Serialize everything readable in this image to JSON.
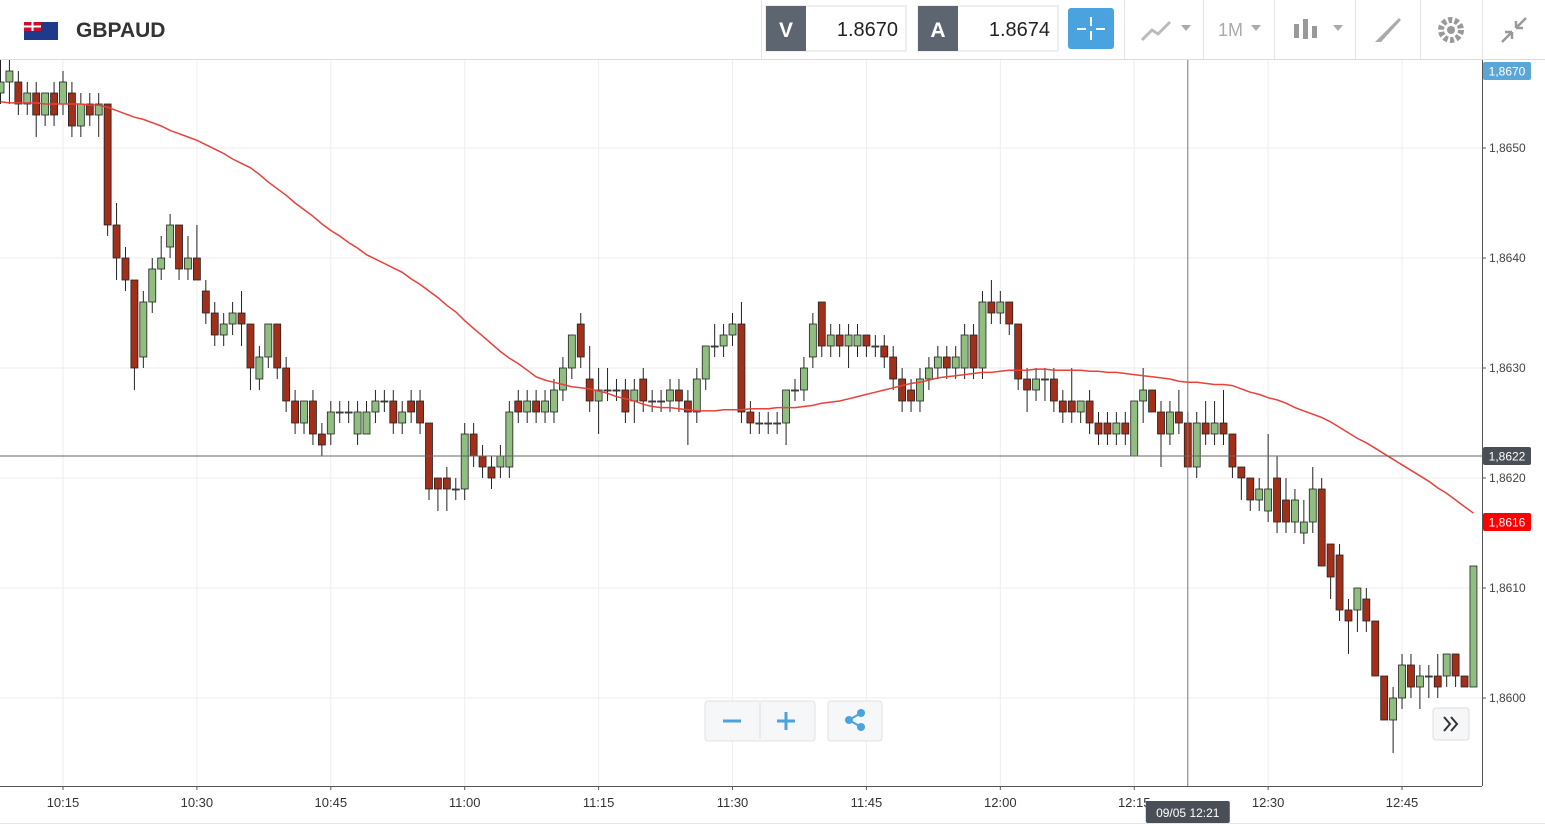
{
  "header": {
    "symbol": "GBPAUD",
    "bid_label": "V",
    "bid": "1.8670",
    "ask_label": "A",
    "ask": "1.8674",
    "timeframe": "1M"
  },
  "chart_data": {
    "type": "candlestick",
    "categories": [
      null,
      null,
      null,
      null,
      null,
      null,
      null,
      "10:15",
      null,
      null,
      null,
      null,
      null,
      null,
      null,
      null,
      null,
      null,
      null,
      null,
      null,
      null,
      "10:30",
      null,
      null,
      null,
      null,
      null,
      null,
      null,
      null,
      null,
      null,
      null,
      null,
      null,
      null,
      "10:45",
      null,
      null,
      null,
      null,
      null,
      null,
      null,
      null,
      null,
      null,
      null,
      null,
      null,
      null,
      "11:00",
      null,
      null,
      null,
      null,
      null,
      null,
      null,
      null,
      null,
      null,
      null,
      null,
      null,
      null,
      "11:15",
      null,
      null,
      null,
      null,
      null,
      null,
      null,
      null,
      null,
      null,
      null,
      null,
      null,
      null,
      "11:30",
      null,
      null,
      null,
      null,
      null,
      null,
      null,
      null,
      null,
      null,
      null,
      null,
      null,
      null,
      "11:45",
      null,
      null,
      null,
      null,
      null,
      null,
      null,
      null,
      null,
      null,
      null,
      null,
      null,
      null,
      "12:00",
      null,
      null,
      null,
      null,
      null,
      null,
      null,
      null,
      null,
      null,
      null,
      null,
      null,
      null,
      "12:15",
      null,
      null,
      null,
      null,
      null,
      null,
      null,
      null,
      null,
      null,
      null,
      null,
      null,
      null,
      "12:30",
      null,
      null,
      null,
      null,
      null,
      null,
      null,
      null,
      null,
      null,
      null,
      null,
      null,
      null,
      "12:45",
      null,
      null,
      null,
      null,
      null,
      null,
      null,
      null
    ],
    "ohlc": [
      [
        1.8655,
        1.8658,
        1.8654,
        1.8656
      ],
      [
        1.8656,
        1.8658,
        1.8654,
        1.8657
      ],
      [
        1.8656,
        1.8657,
        1.8653,
        1.8654
      ],
      [
        1.8654,
        1.8656,
        1.8653,
        1.8655
      ],
      [
        1.8655,
        1.8656,
        1.8651,
        1.8653
      ],
      [
        1.8653,
        1.8655,
        1.8652,
        1.8655
      ],
      [
        1.8655,
        1.8656,
        1.8652,
        1.8653
      ],
      [
        1.8654,
        1.8657,
        1.8653,
        1.8656
      ],
      [
        1.8655,
        1.8656,
        1.8651,
        1.8652
      ],
      [
        1.8652,
        1.8655,
        1.8651,
        1.8654
      ],
      [
        1.8654,
        1.8655,
        1.8652,
        1.8653
      ],
      [
        1.8653,
        1.8655,
        1.8651,
        1.8654
      ],
      [
        1.8654,
        1.8654,
        1.8642,
        1.8643
      ],
      [
        1.8643,
        1.8645,
        1.8638,
        1.864
      ],
      [
        1.864,
        1.8641,
        1.8637,
        1.8638
      ],
      [
        1.8638,
        1.8638,
        1.8628,
        1.863
      ],
      [
        1.8631,
        1.8637,
        1.863,
        1.8636
      ],
      [
        1.8636,
        1.864,
        1.8635,
        1.8639
      ],
      [
        1.8639,
        1.8642,
        1.8638,
        1.864
      ],
      [
        1.8641,
        1.8644,
        1.864,
        1.8643
      ],
      [
        1.8643,
        1.8643,
        1.8638,
        1.8639
      ],
      [
        1.8639,
        1.8642,
        1.8638,
        1.864
      ],
      [
        1.864,
        1.8643,
        1.8638,
        1.8638
      ],
      [
        1.8637,
        1.8638,
        1.8634,
        1.8635
      ],
      [
        1.8635,
        1.8636,
        1.8632,
        1.8633
      ],
      [
        1.8633,
        1.8635,
        1.8632,
        1.8634
      ],
      [
        1.8634,
        1.8636,
        1.8633,
        1.8635
      ],
      [
        1.8635,
        1.8637,
        1.8632,
        1.8634
      ],
      [
        1.8634,
        1.8634,
        1.8628,
        1.863
      ],
      [
        1.8629,
        1.8632,
        1.8628,
        1.8631
      ],
      [
        1.8631,
        1.8634,
        1.863,
        1.8634
      ],
      [
        1.8634,
        1.8634,
        1.8629,
        1.863
      ],
      [
        1.863,
        1.8631,
        1.8626,
        1.8627
      ],
      [
        1.8627,
        1.8628,
        1.8624,
        1.8625
      ],
      [
        1.8625,
        1.8627,
        1.8624,
        1.8627
      ],
      [
        1.8627,
        1.8628,
        1.8623,
        1.8624
      ],
      [
        1.8624,
        1.8625,
        1.8622,
        1.8623
      ],
      [
        1.8624,
        1.8627,
        1.8623,
        1.8626
      ],
      [
        1.8626,
        1.8627,
        1.8625,
        1.8626
      ],
      [
        1.8626,
        1.8627,
        1.8625,
        1.8626
      ],
      [
        1.8624,
        1.8627,
        1.8623,
        1.8626
      ],
      [
        1.8624,
        1.8627,
        1.8624,
        1.8626
      ],
      [
        1.8626,
        1.8628,
        1.8625,
        1.8627
      ],
      [
        1.8627,
        1.8628,
        1.8626,
        1.8627
      ],
      [
        1.8627,
        1.8628,
        1.8624,
        1.8625
      ],
      [
        1.8625,
        1.8627,
        1.8624,
        1.8626
      ],
      [
        1.8627,
        1.8628,
        1.8625,
        1.8626
      ],
      [
        1.8627,
        1.8628,
        1.8624,
        1.8625
      ],
      [
        1.8625,
        1.8625,
        1.8618,
        1.8619
      ],
      [
        1.862,
        1.862,
        1.8617,
        1.8619
      ],
      [
        1.862,
        1.8621,
        1.8617,
        1.8619
      ],
      [
        1.8619,
        1.862,
        1.8618,
        1.8619
      ],
      [
        1.8619,
        1.8625,
        1.8618,
        1.8624
      ],
      [
        1.8624,
        1.8625,
        1.8621,
        1.8622
      ],
      [
        1.8622,
        1.8623,
        1.862,
        1.8621
      ],
      [
        1.8621,
        1.8622,
        1.8619,
        1.862
      ],
      [
        1.8621,
        1.8623,
        1.862,
        1.8622
      ],
      [
        1.8621,
        1.8627,
        1.862,
        1.8626
      ],
      [
        1.8627,
        1.8628,
        1.8625,
        1.8626
      ],
      [
        1.8626,
        1.8628,
        1.8625,
        1.8627
      ],
      [
        1.8627,
        1.8628,
        1.8625,
        1.8626
      ],
      [
        1.8626,
        1.8628,
        1.8625,
        1.8627
      ],
      [
        1.8626,
        1.8629,
        1.8625,
        1.8628
      ],
      [
        1.8628,
        1.8631,
        1.8627,
        1.863
      ],
      [
        1.863,
        1.8633,
        1.8629,
        1.8633
      ],
      [
        1.8634,
        1.8635,
        1.863,
        1.8631
      ],
      [
        1.8629,
        1.8632,
        1.8626,
        1.8627
      ],
      [
        1.8627,
        1.863,
        1.8624,
        1.8628
      ],
      [
        1.8628,
        1.863,
        1.8627,
        1.8628
      ],
      [
        1.8628,
        1.8629,
        1.8627,
        1.8628
      ],
      [
        1.8628,
        1.8629,
        1.8625,
        1.8626
      ],
      [
        1.8627,
        1.8629,
        1.8625,
        1.8628
      ],
      [
        1.8629,
        1.863,
        1.8626,
        1.8627
      ],
      [
        1.8627,
        1.8628,
        1.8626,
        1.8627
      ],
      [
        1.8627,
        1.8628,
        1.8626,
        1.8627
      ],
      [
        1.8627,
        1.8629,
        1.8626,
        1.8628
      ],
      [
        1.8628,
        1.8629,
        1.8626,
        1.8627
      ],
      [
        1.8627,
        1.8628,
        1.8623,
        1.8626
      ],
      [
        1.8626,
        1.863,
        1.8625,
        1.8629
      ],
      [
        1.8629,
        1.8632,
        1.8628,
        1.8632
      ],
      [
        1.8632,
        1.8634,
        1.8631,
        1.8632
      ],
      [
        1.8632,
        1.8634,
        1.8631,
        1.8633
      ],
      [
        1.8633,
        1.8635,
        1.8632,
        1.8634
      ],
      [
        1.8634,
        1.8636,
        1.8625,
        1.8626
      ],
      [
        1.8626,
        1.8627,
        1.8624,
        1.8625
      ],
      [
        1.8625,
        1.8626,
        1.8624,
        1.8625
      ],
      [
        1.8625,
        1.8626,
        1.8624,
        1.8625
      ],
      [
        1.8625,
        1.8626,
        1.8624,
        1.8625
      ],
      [
        1.8625,
        1.8628,
        1.8623,
        1.8628
      ],
      [
        1.8628,
        1.8629,
        1.8627,
        1.8628
      ],
      [
        1.8628,
        1.8631,
        1.8627,
        1.863
      ],
      [
        1.8631,
        1.8635,
        1.863,
        1.8634
      ],
      [
        1.8636,
        1.8636,
        1.8631,
        1.8632
      ],
      [
        1.8632,
        1.8634,
        1.8631,
        1.8633
      ],
      [
        1.8633,
        1.8634,
        1.8631,
        1.8632
      ],
      [
        1.8632,
        1.8634,
        1.863,
        1.8633
      ],
      [
        1.8632,
        1.8634,
        1.8631,
        1.8633
      ],
      [
        1.8633,
        1.8633,
        1.8631,
        1.8632
      ],
      [
        1.8632,
        1.8633,
        1.8631,
        1.8632
      ],
      [
        1.8632,
        1.8633,
        1.863,
        1.8631
      ],
      [
        1.8631,
        1.8632,
        1.8628,
        1.8629
      ],
      [
        1.8629,
        1.863,
        1.8626,
        1.8627
      ],
      [
        1.8628,
        1.8629,
        1.8626,
        1.8627
      ],
      [
        1.8627,
        1.863,
        1.8626,
        1.8629
      ],
      [
        1.8629,
        1.8631,
        1.8628,
        1.863
      ],
      [
        1.863,
        1.8632,
        1.8629,
        1.8631
      ],
      [
        1.8631,
        1.8632,
        1.8629,
        1.863
      ],
      [
        1.863,
        1.8632,
        1.8629,
        1.8631
      ],
      [
        1.863,
        1.8634,
        1.8629,
        1.8633
      ],
      [
        1.8633,
        1.8634,
        1.8629,
        1.863
      ],
      [
        1.863,
        1.8637,
        1.8629,
        1.8636
      ],
      [
        1.8636,
        1.8638,
        1.8634,
        1.8635
      ],
      [
        1.8635,
        1.8637,
        1.8634,
        1.8636
      ],
      [
        1.8636,
        1.8636,
        1.8633,
        1.8634
      ],
      [
        1.8634,
        1.8634,
        1.8628,
        1.8629
      ],
      [
        1.8629,
        1.863,
        1.8626,
        1.8628
      ],
      [
        1.8628,
        1.863,
        1.8627,
        1.8629
      ],
      [
        1.8629,
        1.863,
        1.8627,
        1.8629
      ],
      [
        1.8629,
        1.863,
        1.8626,
        1.8627
      ],
      [
        1.8627,
        1.8628,
        1.8625,
        1.8626
      ],
      [
        1.8627,
        1.863,
        1.8625,
        1.8626
      ],
      [
        1.8626,
        1.8627,
        1.8625,
        1.8627
      ],
      [
        1.8627,
        1.8628,
        1.8624,
        1.8625
      ],
      [
        1.8625,
        1.8626,
        1.8623,
        1.8624
      ],
      [
        1.8625,
        1.8626,
        1.8623,
        1.8624
      ],
      [
        1.8624,
        1.8626,
        1.8623,
        1.8625
      ],
      [
        1.8625,
        1.8626,
        1.8623,
        1.8624
      ],
      [
        1.8622,
        1.8627,
        1.8622,
        1.8627
      ],
      [
        1.8627,
        1.863,
        1.8625,
        1.8628
      ],
      [
        1.8628,
        1.8628,
        1.8626,
        1.8626
      ],
      [
        1.8626,
        1.8627,
        1.8621,
        1.8624
      ],
      [
        1.8624,
        1.8627,
        1.8623,
        1.8626
      ],
      [
        1.8626,
        1.8628,
        1.8624,
        1.8625
      ],
      [
        1.8625,
        1.8626,
        1.8621,
        1.8621
      ],
      [
        1.8621,
        1.8626,
        1.862,
        1.8625
      ],
      [
        1.8625,
        1.8627,
        1.8623,
        1.8624
      ],
      [
        1.8624,
        1.8627,
        1.8623,
        1.8625
      ],
      [
        1.8625,
        1.8628,
        1.8623,
        1.8624
      ],
      [
        1.8624,
        1.8624,
        1.862,
        1.8621
      ],
      [
        1.8621,
        1.8621,
        1.8618,
        1.862
      ],
      [
        1.862,
        1.862,
        1.8617,
        1.8618
      ],
      [
        1.8618,
        1.862,
        1.8617,
        1.8619
      ],
      [
        1.8617,
        1.8624,
        1.8616,
        1.8619
      ],
      [
        1.862,
        1.8622,
        1.8615,
        1.8616
      ],
      [
        1.8618,
        1.862,
        1.8615,
        1.8616
      ],
      [
        1.8616,
        1.8619,
        1.8615,
        1.8618
      ],
      [
        1.8615,
        1.8618,
        1.8614,
        1.8616
      ],
      [
        1.8616,
        1.8621,
        1.8615,
        1.8619
      ],
      [
        1.8619,
        1.862,
        1.8612,
        1.8612
      ],
      [
        1.8614,
        1.8614,
        1.8609,
        1.8611
      ],
      [
        1.8613,
        1.8614,
        1.8607,
        1.8608
      ],
      [
        1.8608,
        1.8609,
        1.8604,
        1.8607
      ],
      [
        1.8608,
        1.861,
        1.8606,
        1.861
      ],
      [
        1.8609,
        1.861,
        1.8606,
        1.8607
      ],
      [
        1.8607,
        1.8607,
        1.8602,
        1.8602
      ],
      [
        1.8602,
        1.8602,
        1.8598,
        1.8598
      ],
      [
        1.8598,
        1.8601,
        1.8595,
        1.86
      ],
      [
        1.86,
        1.8604,
        1.8599,
        1.8603
      ],
      [
        1.8603,
        1.8604,
        1.86,
        1.8601
      ],
      [
        1.8601,
        1.8603,
        1.8599,
        1.8602
      ],
      [
        1.8602,
        1.8603,
        1.86,
        1.8602
      ],
      [
        1.8602,
        1.8604,
        1.86,
        1.8601
      ],
      [
        1.8602,
        1.8604,
        1.8601,
        1.8604
      ],
      [
        1.8604,
        1.8604,
        1.8601,
        1.8602
      ],
      [
        1.8602,
        1.8602,
        1.8601,
        1.8601
      ],
      [
        1.8601,
        1.8612,
        1.8601,
        1.8612
      ]
    ],
    "up_color": "#8fbe80",
    "down_color": "#a12f1a",
    "ma": {
      "color": "#e8413a",
      "values": [
        1.86542,
        1.86541,
        1.86541,
        1.86541,
        1.86541,
        1.8654,
        1.8654,
        1.8654,
        1.8654,
        1.8654,
        1.86539,
        1.86539,
        1.86537,
        1.86534,
        1.86531,
        1.86528,
        1.86526,
        1.86523,
        1.8652,
        1.86516,
        1.86513,
        1.8651,
        1.86507,
        1.86503,
        1.86499,
        1.86495,
        1.8649,
        1.86486,
        1.86482,
        1.86476,
        1.86469,
        1.86463,
        1.86457,
        1.8645,
        1.86444,
        1.86438,
        1.86431,
        1.86425,
        1.8642,
        1.86414,
        1.86409,
        1.86403,
        1.86399,
        1.86395,
        1.86391,
        1.86387,
        1.86381,
        1.86376,
        1.8637,
        1.86364,
        1.86357,
        1.86351,
        1.86343,
        1.86336,
        1.86329,
        1.86322,
        1.86315,
        1.86309,
        1.86304,
        1.86298,
        1.86292,
        1.86289,
        1.86287,
        1.86285,
        1.86283,
        1.86282,
        1.86281,
        1.86279,
        1.86277,
        1.86274,
        1.86272,
        1.8627,
        1.86267,
        1.86265,
        1.86264,
        1.86264,
        1.86263,
        1.86262,
        1.86261,
        1.86261,
        1.86261,
        1.86262,
        1.86262,
        1.86262,
        1.86263,
        1.86263,
        1.86263,
        1.86264,
        1.86264,
        1.86264,
        1.86265,
        1.86266,
        1.86268,
        1.86269,
        1.8627,
        1.86272,
        1.86274,
        1.86276,
        1.86278,
        1.8628,
        1.86282,
        1.86284,
        1.86286,
        1.86287,
        1.86289,
        1.86291,
        1.86292,
        1.86293,
        1.86294,
        1.86295,
        1.86296,
        1.86296,
        1.86297,
        1.86298,
        1.86298,
        1.86298,
        1.86299,
        1.86299,
        1.86298,
        1.86298,
        1.86298,
        1.86298,
        1.86297,
        1.86297,
        1.86296,
        1.86296,
        1.86295,
        1.86294,
        1.86293,
        1.86292,
        1.86291,
        1.8629,
        1.86288,
        1.86287,
        1.86287,
        1.86286,
        1.86285,
        1.86285,
        1.86284,
        1.86281,
        1.86278,
        1.86276,
        1.86273,
        1.86271,
        1.86268,
        1.86264,
        1.86261,
        1.86258,
        1.86255,
        1.86251,
        1.86246,
        1.86241,
        1.86236,
        1.86232,
        1.86227,
        1.86222,
        1.86217,
        1.86212,
        1.86207,
        1.86202,
        1.86197,
        1.86191,
        1.86186,
        1.8618,
        1.86174,
        1.86168
      ]
    },
    "ylim": [
      1.8592,
      1.8658
    ],
    "yticks": [
      {
        "value": 1.86,
        "label": "1,8600"
      },
      {
        "value": 1.861,
        "label": "1,8610"
      },
      {
        "value": 1.862,
        "label": "1,8620"
      },
      {
        "value": 1.863,
        "label": "1,8630"
      },
      {
        "value": 1.864,
        "label": "1,8640"
      },
      {
        "value": 1.865,
        "label": "1,8650"
      }
    ],
    "grid": true,
    "price_tags": [
      {
        "value": 1.867,
        "label": "1,8670",
        "color": "#5aa6d6"
      },
      {
        "value": 1.8622,
        "label": "1,8622",
        "color": "#4a4f57"
      },
      {
        "value": 1.8616,
        "label": "1,8616",
        "color": "#ff0000"
      }
    ],
    "crosshair": {
      "price": 1.8622,
      "time_label": "09/05 12:21"
    }
  }
}
